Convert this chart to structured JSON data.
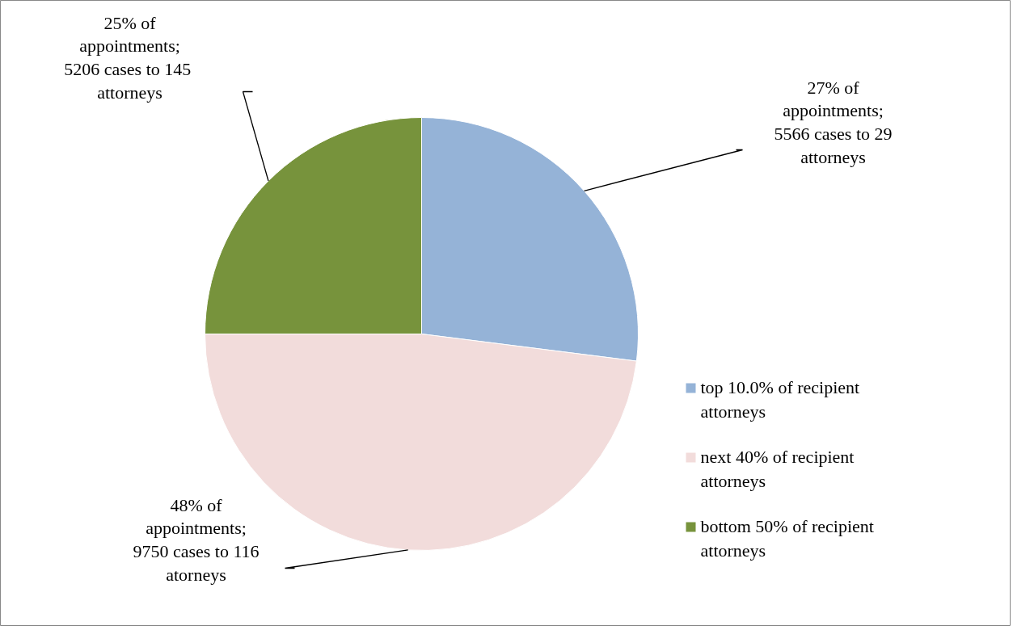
{
  "chart_data": {
    "type": "pie",
    "categories": [
      "top 10.0% of recipient attorneys",
      "next 40% of recipient attorneys",
      "bottom 50% of recipient attorneys"
    ],
    "values": [
      27,
      48,
      25
    ],
    "colors": [
      "#95b3d7",
      "#f2dcdb",
      "#77933c"
    ],
    "value_labels": [
      "27% of\nappointments;\n5566 cases to 29\nattorneys",
      "48% of\nappointments;\n9750 cases to 116\natorneys",
      "25% of\nappointments;\n5206  cases to 145\nattorneys"
    ],
    "legend": "right"
  }
}
